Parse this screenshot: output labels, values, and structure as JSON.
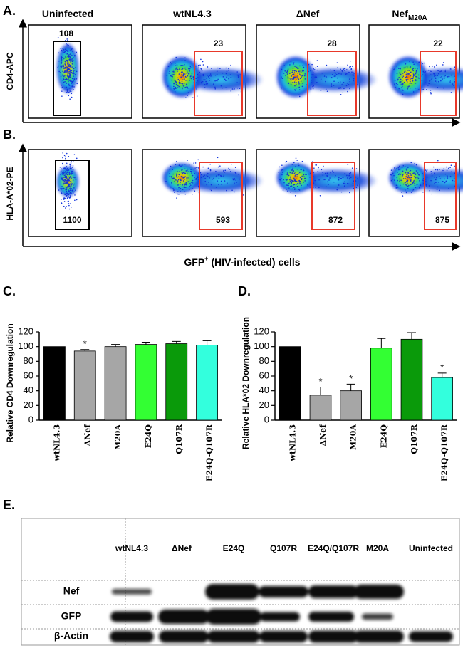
{
  "panel_a": {
    "label": "A.",
    "columns": [
      {
        "text": "Uninfected"
      },
      {
        "text": "wtNL4.3"
      },
      {
        "text": "ΔNef"
      },
      {
        "text": "Nef",
        "subscript": "M20A"
      }
    ],
    "y_label": "CD4-APC",
    "gate_counts": [
      "108",
      "23",
      "28",
      "22"
    ]
  },
  "panel_b": {
    "label": "B.",
    "y_label": "HLA-A*02-PE",
    "gate_counts": [
      "1100",
      "593",
      "872",
      "875"
    ],
    "x_label": {
      "text": "GFP",
      "superscript": "+",
      "rest": " (HIV-infected) cells"
    }
  },
  "chart_data": [
    {
      "type": "bar",
      "panel_label": "C.",
      "y_label": "Relative CD4 Downregulation",
      "categories": [
        "wtNL4.3",
        "ΔNef",
        "M20A",
        "E24Q",
        "Q107R",
        "E24Q-Q107R"
      ],
      "values": [
        100,
        94,
        100,
        103,
        104,
        102
      ],
      "errors": [
        0,
        2,
        3,
        3,
        3,
        6
      ],
      "colors": [
        "#000000",
        "#a6a6a6",
        "#a6a6a6",
        "#33ff33",
        "#0a9a0a",
        "#33ffdd"
      ],
      "significant": [
        false,
        true,
        false,
        false,
        false,
        false
      ],
      "significance_label": "*",
      "ylim": [
        0,
        120
      ],
      "yticks": [
        0,
        20,
        40,
        60,
        80,
        100,
        120
      ]
    },
    {
      "type": "bar",
      "panel_label": "D.",
      "y_label": "Relative HLA*02 Downregulation",
      "categories": [
        "wtNL4.3",
        "ΔNef",
        "M20A",
        "E24Q",
        "Q107R",
        "E24Q-Q107R"
      ],
      "values": [
        100,
        34,
        40,
        98,
        110,
        58
      ],
      "errors": [
        0,
        11,
        9,
        13,
        9,
        6
      ],
      "colors": [
        "#000000",
        "#a6a6a6",
        "#a6a6a6",
        "#33ff33",
        "#0a9a0a",
        "#33ffdd"
      ],
      "significant": [
        false,
        true,
        true,
        false,
        false,
        true
      ],
      "significance_label": "*",
      "ylim": [
        0,
        120
      ],
      "yticks": [
        0,
        20,
        40,
        60,
        80,
        100,
        120
      ]
    }
  ],
  "panel_e": {
    "label": "E.",
    "columns": [
      "wtNL4.3",
      "ΔNef",
      "E24Q",
      "Q107R",
      "E24Q/Q107R",
      "M20A",
      "Uninfected"
    ],
    "rows": [
      "Nef",
      "GFP",
      "β-Actin"
    ]
  }
}
